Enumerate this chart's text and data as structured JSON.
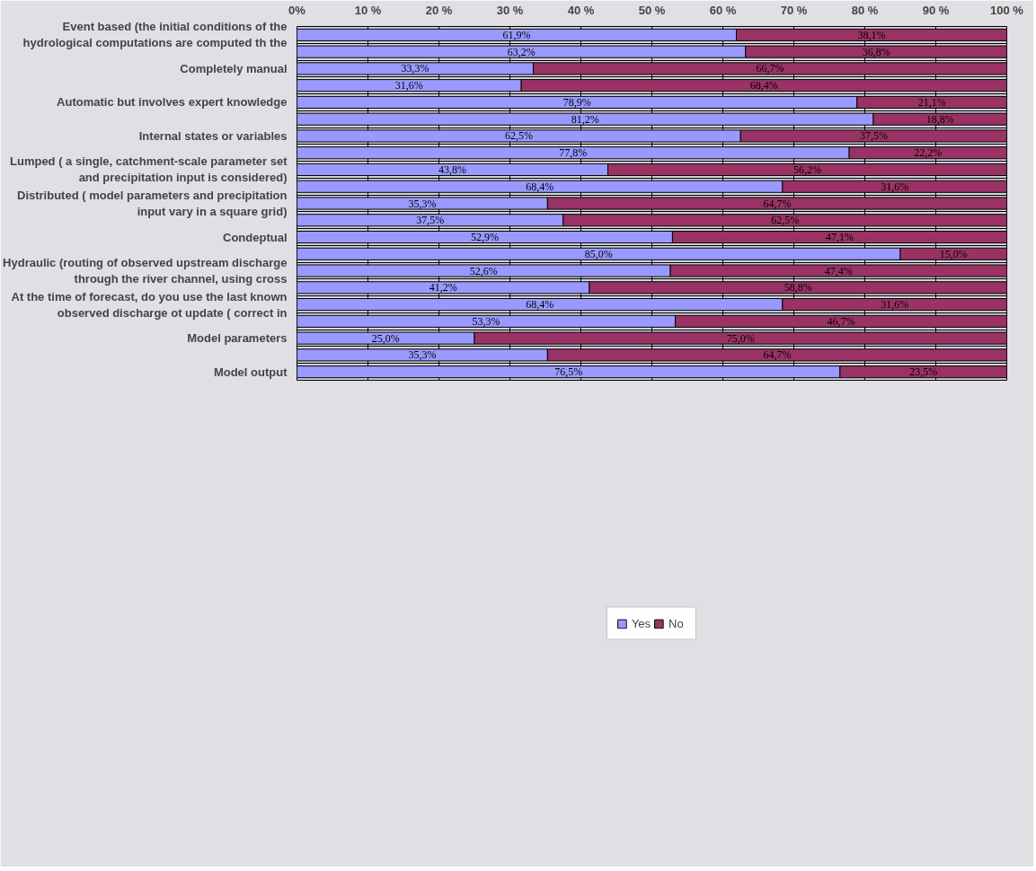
{
  "chart_data": {
    "type": "bar",
    "orientation": "horizontal",
    "stacked": true,
    "categories": [
      "Event based (the initial conditions of the hydrological computations are computed th the",
      null,
      "Completely manual",
      null,
      "Automatic but involves expert knowledge",
      null,
      "Internal states or variables",
      null,
      "Lumped ( a single, catchment-scale parameter set and precipitation input is considered)",
      null,
      "Distributed ( model parameters and precipitation input vary in a square grid)",
      null,
      "Condeptual",
      null,
      "Hydraulic (routing of observed upstream discharge through the river channel, using cross",
      null,
      "At the time of forecast, do you use the last known observed discharge ot update ( correct in",
      null,
      "Model parameters",
      null,
      "Model output"
    ],
    "series": [
      {
        "name": "Yes",
        "color": "#9999ff",
        "values": [
          61.9,
          63.2,
          33.3,
          31.6,
          78.9,
          81.2,
          62.5,
          77.8,
          43.8,
          68.4,
          35.3,
          37.5,
          52.9,
          85.0,
          52.6,
          41.2,
          68.4,
          53.3,
          25.0,
          35.3,
          76.5
        ],
        "value_labels": [
          "61,9%",
          "63,2%",
          "33,3%",
          "31,6%",
          "78,9%",
          "81,2%",
          "62,5%",
          "77,8%",
          "43,8%",
          "68,4%",
          "35,3%",
          "37,5%",
          "52,9%",
          "85,0%",
          "52,6%",
          "41,2%",
          "68,4%",
          "53,3%",
          "25,0%",
          "35,3%",
          "76,5%"
        ]
      },
      {
        "name": "No",
        "color": "#993366",
        "values": [
          38.1,
          36.8,
          66.7,
          68.4,
          21.1,
          18.8,
          37.5,
          22.2,
          56.2,
          31.6,
          64.7,
          62.5,
          47.1,
          15.0,
          47.4,
          58.8,
          31.6,
          46.7,
          75.0,
          64.7,
          23.5
        ],
        "value_labels": [
          "38,1%",
          "36,8%",
          "66,7%",
          "68,4%",
          "21,1%",
          "18,8%",
          "37,5%",
          "22,2%",
          "56,2%",
          "31,6%",
          "64,7%",
          "62,5%",
          "47,1%",
          "15,0%",
          "47,4%",
          "58,8%",
          "31,6%",
          "46,7%",
          "75,0%",
          "64,7%",
          "23,5%"
        ]
      }
    ],
    "xlim": [
      0,
      100
    ],
    "xticks": [
      {
        "value": 0,
        "label": "0%"
      },
      {
        "value": 10,
        "label": "10 %"
      },
      {
        "value": 20,
        "label": "20 %"
      },
      {
        "value": 30,
        "label": "30 %"
      },
      {
        "value": 40,
        "label": "40 %"
      },
      {
        "value": 50,
        "label": "50 %"
      },
      {
        "value": 60,
        "label": "60 %"
      },
      {
        "value": 70,
        "label": "70 %"
      },
      {
        "value": 80,
        "label": "80 %"
      },
      {
        "value": 90,
        "label": "90 %"
      },
      {
        "value": 100,
        "label": "100 %"
      }
    ],
    "grid": true,
    "legend": "bottom"
  }
}
